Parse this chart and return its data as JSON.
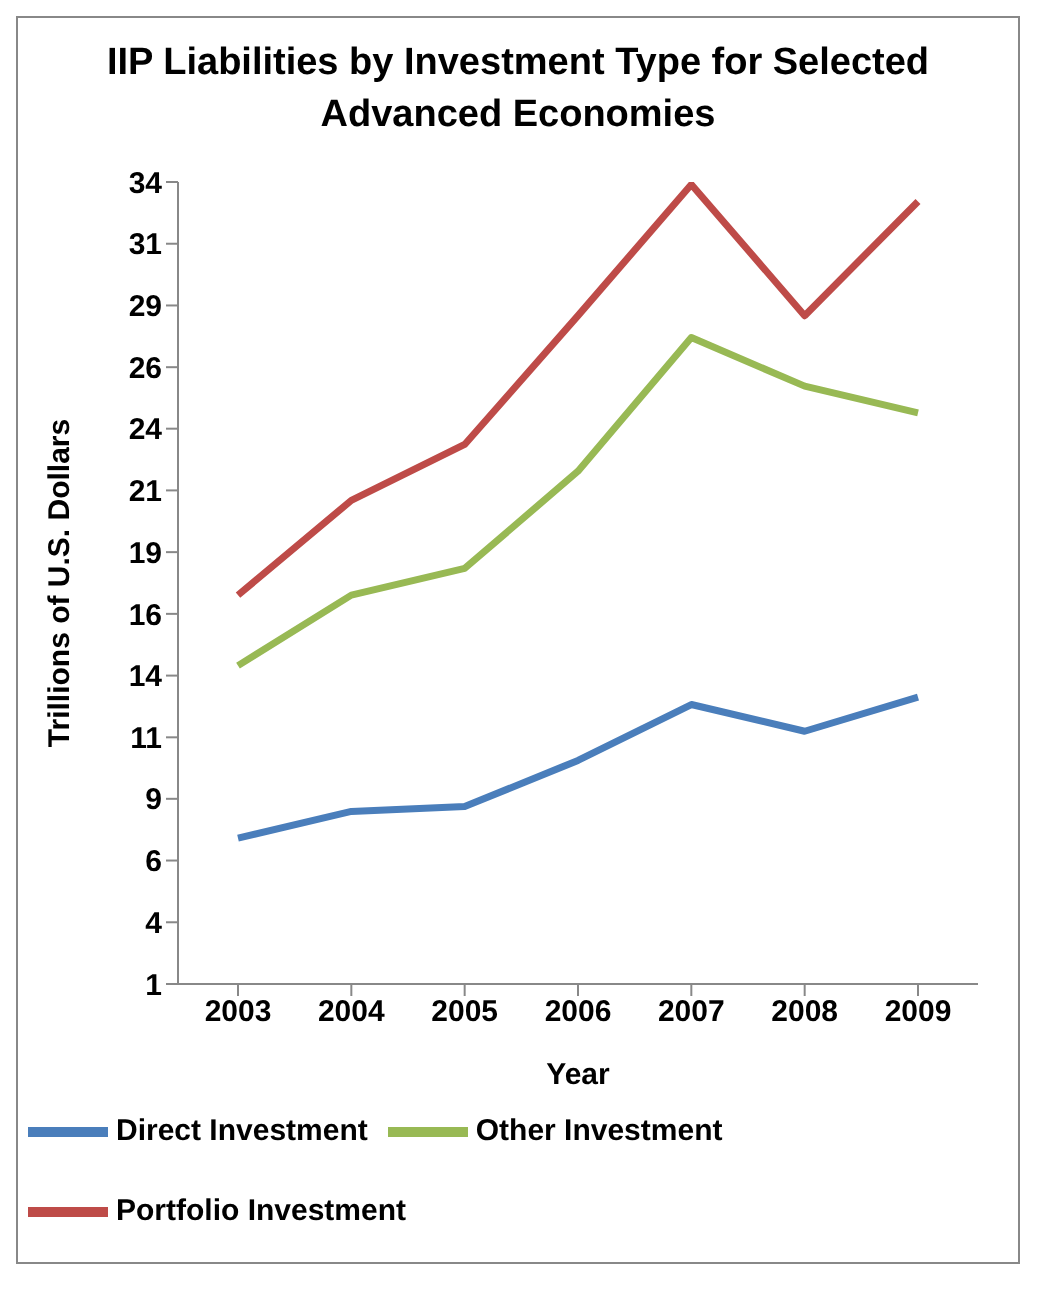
{
  "chart_data": {
    "type": "line",
    "title": "IIP Liabilities by Investment Type for Selected Advanced Economies",
    "xlabel": "Year",
    "ylabel": "Trillions of U.S. Dollars",
    "categories": [
      "2003",
      "2004",
      "2005",
      "2006",
      "2007",
      "2008",
      "2009"
    ],
    "series": [
      {
        "name": "Direct Investment",
        "color": "#4a7ebb",
        "values": [
          7.0,
          8.1,
          8.3,
          10.2,
          12.5,
          11.4,
          12.8
        ]
      },
      {
        "name": "Portfolio Investment",
        "color": "#be4b48",
        "values": [
          17.0,
          20.9,
          23.2,
          28.5,
          33.9,
          28.5,
          33.2
        ]
      },
      {
        "name": "Other Investment",
        "color": "#98b954",
        "values": [
          14.1,
          17.0,
          18.1,
          22.1,
          27.6,
          25.6,
          24.5
        ]
      }
    ],
    "ylim": [
      1,
      34
    ],
    "yticks": [
      1,
      {
        "value": 3.54,
        "label": "4"
      },
      {
        "value": 6.08,
        "label": "6"
      },
      {
        "value": 8.62,
        "label": "9"
      },
      {
        "value": 11.15,
        "label": "11"
      },
      {
        "value": 13.69,
        "label": "14"
      },
      {
        "value": 16.23,
        "label": "16"
      },
      {
        "value": 18.77,
        "label": "19"
      },
      {
        "value": 21.31,
        "label": "21"
      },
      {
        "value": 23.85,
        "label": "24"
      },
      {
        "value": 26.38,
        "label": "26"
      },
      {
        "value": 28.92,
        "label": "29"
      },
      {
        "value": 31.46,
        "label": "31"
      },
      34
    ],
    "grid": false,
    "legend": "bottom",
    "marker": "none",
    "line_style": "solid"
  }
}
